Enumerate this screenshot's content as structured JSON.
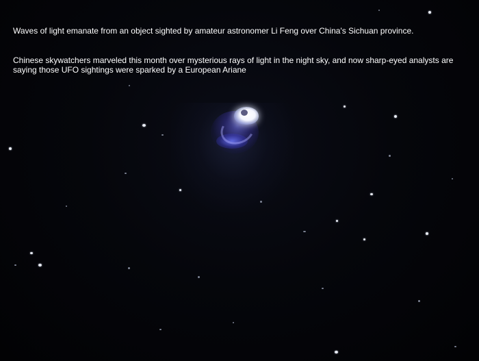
{
  "caption": {
    "line1": "Waves of light emanate from an object sighted by amateur astronomer Li Feng over China's Sichuan province.",
    "line2": "Chinese skywatchers marveled this month over mysterious rays of light in the night sky, and now sharp-eyed analysts are saying those UFO sightings were sparked by a European Ariane"
  },
  "colors": {
    "sky": "#05060b",
    "caption_text": "#ffffff",
    "object_core": "#ffffff",
    "object_glow": "#6a6aff"
  }
}
